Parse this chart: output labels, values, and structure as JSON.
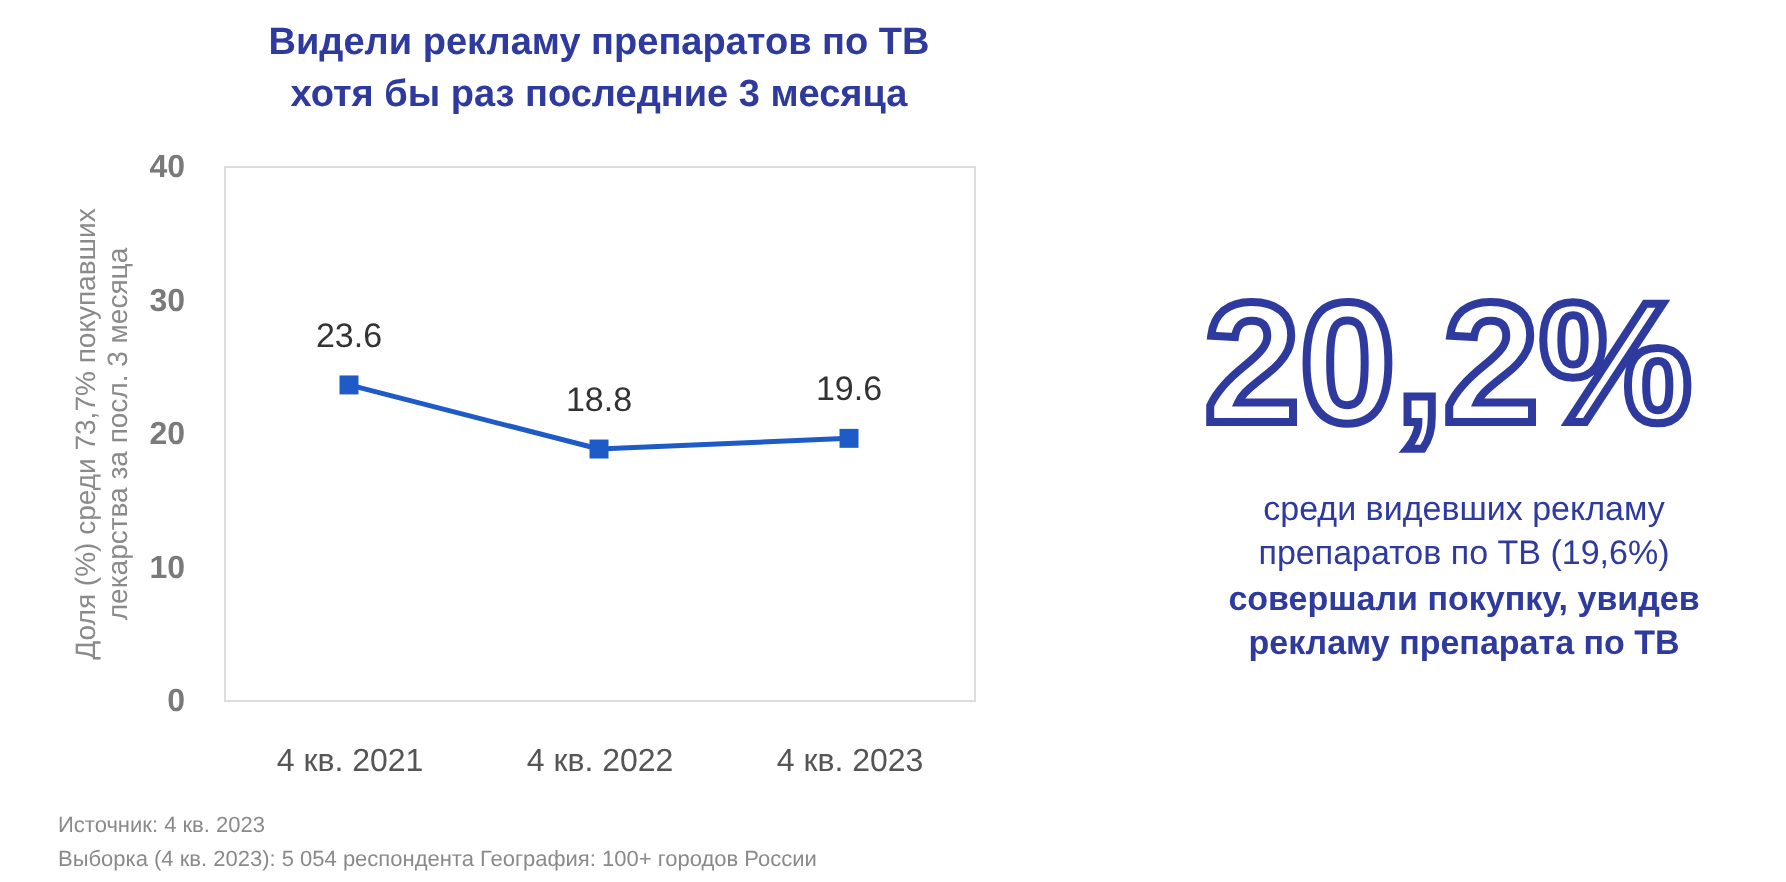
{
  "chart_data": {
    "type": "line",
    "title": "Видели рекламу препаратов по ТВ\nхотя бы раз последние 3 месяца",
    "ylabel": "Доля (%) среди 73,7% покупавших\nлекарства за посл. 3 месяца",
    "categories": [
      "4 кв. 2021",
      "4 кв. 2022",
      "4 кв. 2023"
    ],
    "series": [
      {
        "color": "#1f5bc6",
        "values": [
          23.6,
          18.8,
          19.6
        ]
      }
    ],
    "ylim": [
      0,
      40
    ],
    "yticks": [
      0,
      10,
      20,
      30,
      40
    ],
    "data_labels": true,
    "marker": "square",
    "line_style": "solid",
    "grid": false,
    "annotations": [
      "20,2%",
      "среди видевших рекламу\nпрепаратов по ТВ (19,6%)",
      "совершали покупку, увидев\nрекламу препарата по ТВ",
      "Источник: 4 кв. 2023",
      "Выборка (4 кв. 2023): 5 054 респондента  География: 100+ городов России"
    ]
  }
}
